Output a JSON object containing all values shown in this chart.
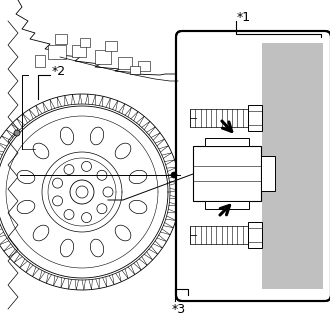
{
  "bg_color": "#ffffff",
  "line_color": "#000000",
  "gray_color": "#c0c0c0",
  "label_1": "*1",
  "label_2": "*2",
  "label_3": "*3",
  "fig_width": 3.3,
  "fig_height": 3.29,
  "dpi": 100
}
